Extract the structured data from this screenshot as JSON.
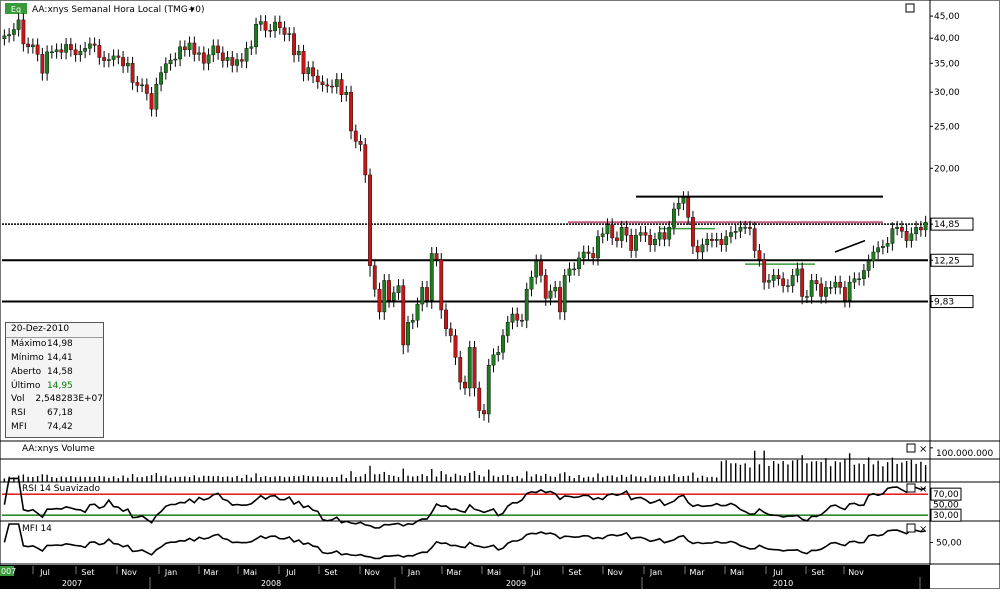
{
  "header": {
    "badge": "Eq",
    "title": "AA:xnys Semanal Hora Local (TMG+0)",
    "dropdown": "▾"
  },
  "info": {
    "date": "20-Dez-2010",
    "rows": [
      {
        "label": "Máximo",
        "value": "14,98"
      },
      {
        "label": "Mínimo",
        "value": "14,41"
      },
      {
        "label": "Aberto",
        "value": "14,58"
      },
      {
        "label": "Último",
        "value": "14,95",
        "color": "#0a7a0a"
      },
      {
        "label": "Vol",
        "value": "2,548283E+07"
      },
      {
        "label": "RSI",
        "value": "67,18"
      },
      {
        "label": "MFI",
        "value": "74,42"
      }
    ]
  },
  "panels": {
    "volume_label": "AA:xnys Volume",
    "rsi_label": "RSI 14 Suavizado",
    "mfi_label": "MFI 14",
    "volume_tick": "100.000.000",
    "rsi_ticks": [
      "70,00",
      "50,00",
      "30,00"
    ],
    "mfi_tick": "50,00",
    "pane_buttons": [
      "□",
      "×"
    ]
  },
  "time_axis": {
    "months": [
      "Jul",
      "Set",
      "Nov",
      "Jan",
      "Mar",
      "Mai",
      "Jul",
      "Set",
      "Nov",
      "Jan",
      "Mar",
      "Mai",
      "Jul",
      "Set",
      "Nov",
      "Jan",
      "Mar",
      "Mai",
      "Jul",
      "Set",
      "Nov"
    ],
    "years": [
      "2007",
      "2008",
      "2009",
      "2010"
    ],
    "left_stub": "007"
  },
  "chart_data": {
    "type": "candlestick",
    "title": "AA:xnys Semanal Hora Local (TMG+0)",
    "price_scale": "log",
    "price_ticks": [
      "45,00",
      "40,00",
      "35,00",
      "30,00",
      "25,00",
      "20,00",
      "14,85",
      "12,25",
      "9,83"
    ],
    "price_tick_values": [
      45,
      40,
      35,
      30,
      25,
      20,
      14.85,
      12.25,
      9.83
    ],
    "highlighted_prices": [
      14.85,
      12.25,
      9.83
    ],
    "ylim": [
      4.7,
      48
    ],
    "x_range": [
      "2007-06",
      "2010-12"
    ],
    "horizontal_lines": [
      {
        "price": 14.85,
        "style": "dotted",
        "color": "#000000",
        "span": "full"
      },
      {
        "price": 12.25,
        "style": "solid",
        "color": "#000000",
        "span": "full"
      },
      {
        "price": 9.83,
        "style": "solid",
        "color": "#000000",
        "span": "full"
      },
      {
        "price": 17.2,
        "style": "solid",
        "color": "#000000",
        "span": "partial"
      },
      {
        "price": 15.0,
        "style": "solid",
        "color": "#c06080",
        "span": "partial"
      }
    ],
    "closes": [
      40.5,
      40.8,
      41.9,
      44.1,
      38.8,
      38.2,
      38.6,
      36.7,
      33.2,
      37.2,
      37.2,
      37.6,
      37.1,
      38.7,
      37.6,
      36.6,
      37.3,
      37.9,
      38.8,
      38.5,
      36.1,
      35.5,
      35.7,
      36.4,
      36.1,
      34.5,
      35.0,
      31.6,
      31.1,
      31.2,
      29.8,
      27.4,
      31.3,
      33.3,
      34.9,
      35.6,
      35.8,
      38.2,
      37.6,
      39.0,
      36.7,
      37.0,
      35.0,
      36.6,
      38.4,
      37.0,
      35.5,
      36.1,
      34.6,
      35.7,
      35.4,
      37.9,
      38.2,
      43.1,
      43.7,
      41.7,
      41.6,
      43.6,
      42.3,
      40.8,
      41.0,
      36.6,
      37.3,
      33.1,
      34.2,
      32.7,
      31.7,
      31.2,
      31.0,
      30.9,
      32.1,
      29.6,
      30.0,
      24.4,
      23.1,
      22.7,
      19.3,
      11.9,
      10.5,
      9.3,
      11.0,
      9.9,
      10.3,
      10.7,
      7.8,
      8.8,
      8.9,
      9.7,
      10.6,
      9.9,
      12.7,
      12.3,
      9.4,
      8.5,
      8.2,
      7.3,
      6.4,
      6.2,
      7.7,
      6.2,
      5.5,
      5.4,
      7.0,
      7.4,
      7.5,
      8.2,
      8.8,
      9.2,
      8.9,
      8.9,
      10.5,
      11.2,
      12.2,
      11.3,
      10.0,
      10.4,
      10.6,
      9.3,
      11.3,
      11.7,
      11.7,
      12.4,
      12.8,
      12.7,
      12.4,
      13.9,
      14.1,
      14.8,
      13.8,
      13.6,
      14.6,
      14.0,
      12.9,
      14.0,
      14.2,
      14.0,
      13.3,
      13.7,
      14.2,
      13.7,
      14.6,
      16.1,
      16.6,
      17.1,
      15.4,
      13.2,
      12.8,
      13.3,
      13.7,
      13.6,
      13.7,
      13.3,
      13.9,
      14.2,
      14.3,
      14.6,
      14.6,
      14.5,
      12.9,
      12.3,
      10.9,
      11.0,
      11.3,
      11.1,
      10.7,
      10.7,
      11.3,
      11.7,
      10.1,
      10.1,
      11.0,
      10.8,
      10.1,
      10.6,
      10.6,
      10.9,
      10.6,
      9.9,
      10.9,
      11.1,
      11.1,
      11.6,
      12.2,
      12.8,
      13.1,
      13.2,
      13.4,
      14.5,
      14.6,
      14.3,
      13.6,
      14.1,
      14.6,
      14.4,
      15.0
    ],
    "volume": {
      "ylim": [
        0,
        120000000
      ],
      "tick": 100000000,
      "unit": "shares"
    },
    "rsi": {
      "label": "RSI 14 Suavizado",
      "overbought": 70,
      "oversold": 30,
      "mid": 50,
      "last": 67.18
    },
    "mfi": {
      "label": "MFI 14",
      "mid": 50,
      "last": 74.42
    }
  }
}
